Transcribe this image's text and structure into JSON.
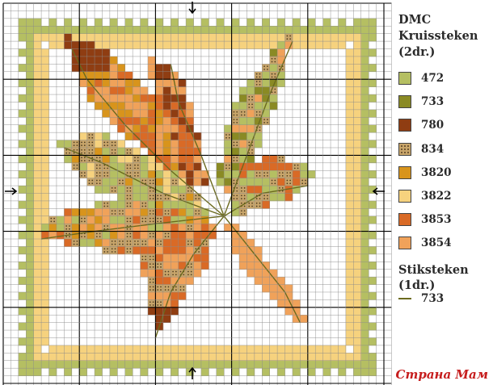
{
  "legend": {
    "brand": "DMC",
    "title_line2": "Kruissteken",
    "title_line3": "(2dr.)",
    "swatches": [
      {
        "code": "472",
        "color": "#b5bf62",
        "pattern": "solid"
      },
      {
        "code": "733",
        "color": "#8a8a24",
        "pattern": "solid"
      },
      {
        "code": "780",
        "color": "#8f3d12",
        "pattern": "solid"
      },
      {
        "code": "834",
        "color": "#c8a56a",
        "pattern": "dots"
      },
      {
        "code": "3820",
        "color": "#d8941c",
        "pattern": "solid"
      },
      {
        "code": "3822",
        "color": "#f6d27e",
        "pattern": "solid"
      },
      {
        "code": "3853",
        "color": "#d96a26",
        "pattern": "solid"
      },
      {
        "code": "3854",
        "color": "#f0a25a",
        "pattern": "solid"
      }
    ],
    "stitch_title_line1": "Stiksteken",
    "stitch_title_line2": "(1dr.)",
    "stitch_code": "733",
    "stitch_color": "#6b6a1e"
  },
  "watermark": "Страна Мам",
  "chart": {
    "center_arrows": [
      "top",
      "bottom",
      "left",
      "right"
    ],
    "description_colors": {
      "grid_minor": "#8a8a8a",
      "grid_major": "#000000"
    }
  }
}
